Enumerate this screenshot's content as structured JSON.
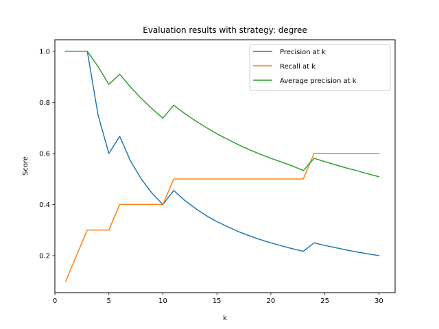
{
  "chart_data": {
    "type": "line",
    "title": "Evaluation results with strategy: degree",
    "xlabel": "k",
    "ylabel": "Score",
    "xlim": [
      0.0,
      31.5
    ],
    "ylim": [
      0.055,
      1.045
    ],
    "xticks": [
      0,
      5,
      10,
      15,
      20,
      25,
      30
    ],
    "yticks": [
      0.2,
      0.4,
      0.6,
      0.8,
      1.0
    ],
    "xtick_labels": [
      "0",
      "5",
      "10",
      "15",
      "20",
      "25",
      "30"
    ],
    "ytick_labels": [
      "0.2",
      "0.4",
      "0.6",
      "0.8",
      "1.0"
    ],
    "grid": false,
    "legend_position": "upper right",
    "x": [
      1,
      2,
      3,
      4,
      5,
      6,
      7,
      8,
      9,
      10,
      11,
      12,
      13,
      14,
      15,
      16,
      17,
      18,
      19,
      20,
      21,
      22,
      23,
      24,
      25,
      26,
      27,
      28,
      29,
      30
    ],
    "series": [
      {
        "name": "Precision at k",
        "color": "#1f77b4",
        "values": [
          1.0,
          1.0,
          1.0,
          0.75,
          0.6,
          0.667,
          0.571,
          0.5,
          0.444,
          0.4,
          0.455,
          0.417,
          0.385,
          0.357,
          0.333,
          0.313,
          0.294,
          0.278,
          0.263,
          0.25,
          0.238,
          0.227,
          0.217,
          0.25,
          0.24,
          0.231,
          0.222,
          0.214,
          0.207,
          0.2
        ]
      },
      {
        "name": "Recall at k",
        "color": "#ff7f0e",
        "values": [
          0.1,
          0.2,
          0.3,
          0.3,
          0.3,
          0.4,
          0.4,
          0.4,
          0.4,
          0.4,
          0.5,
          0.5,
          0.5,
          0.5,
          0.5,
          0.5,
          0.5,
          0.5,
          0.5,
          0.5,
          0.5,
          0.5,
          0.5,
          0.6,
          0.6,
          0.6,
          0.6,
          0.6,
          0.6,
          0.6
        ]
      },
      {
        "name": "Average precision at k",
        "color": "#2ca02c",
        "values": [
          1.0,
          1.0,
          1.0,
          0.94,
          0.87,
          0.91,
          0.86,
          0.815,
          0.775,
          0.738,
          0.789,
          0.757,
          0.728,
          0.702,
          0.677,
          0.655,
          0.634,
          0.615,
          0.597,
          0.581,
          0.566,
          0.551,
          0.533,
          0.581,
          0.568,
          0.555,
          0.543,
          0.532,
          0.52,
          0.509
        ]
      }
    ]
  }
}
